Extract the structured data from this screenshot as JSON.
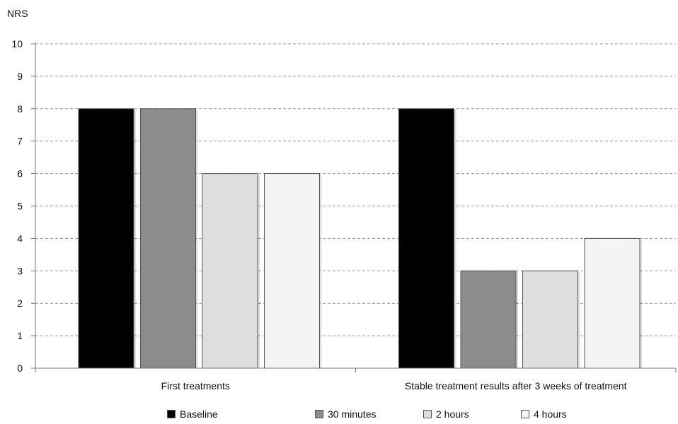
{
  "chart_data": {
    "type": "bar",
    "ylabel": "NRS",
    "xlabel": "",
    "ylim": [
      0,
      10
    ],
    "yticks": [
      0,
      1,
      2,
      3,
      4,
      5,
      6,
      7,
      8,
      9,
      10
    ],
    "grid": true,
    "legend_position": "bottom",
    "categories": [
      "First treatments",
      "Stable treatment results after 3 weeks of treatment"
    ],
    "series": [
      {
        "name": "Baseline",
        "color": "#000000",
        "values": [
          8,
          8
        ]
      },
      {
        "name": "30 minutes",
        "color": "#8c8c8c",
        "values": [
          8,
          3
        ]
      },
      {
        "name": "2 hours",
        "color": "#dedede",
        "values": [
          6,
          3
        ]
      },
      {
        "name": "4 hours",
        "color": "#f4f4f4",
        "values": [
          6,
          4
        ]
      }
    ]
  }
}
